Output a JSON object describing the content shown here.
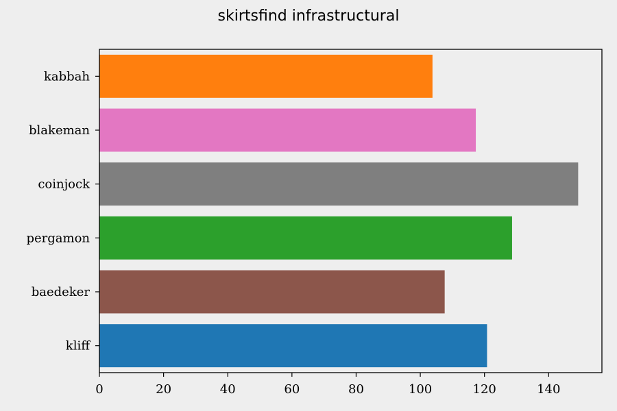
{
  "chart_data": {
    "type": "bar",
    "orientation": "horizontal",
    "title": "skirtsfind infrastructural",
    "xlabel": "",
    "ylabel": "",
    "categories": [
      "kabbah",
      "blakeman",
      "coinjock",
      "pergamon",
      "baedeker",
      "kliff"
    ],
    "values": [
      103.8,
      117.3,
      149.2,
      128.6,
      107.6,
      120.8
    ],
    "bar_colors": [
      "#ff7f0e",
      "#e377c2",
      "#7f7f7f",
      "#2ca02c",
      "#8c564b",
      "#1f77b4"
    ],
    "xlim": [
      0,
      156.6
    ],
    "xticks": [
      0,
      20,
      40,
      60,
      80,
      100,
      120,
      140
    ],
    "grid": false,
    "background": "#eeeeee"
  }
}
